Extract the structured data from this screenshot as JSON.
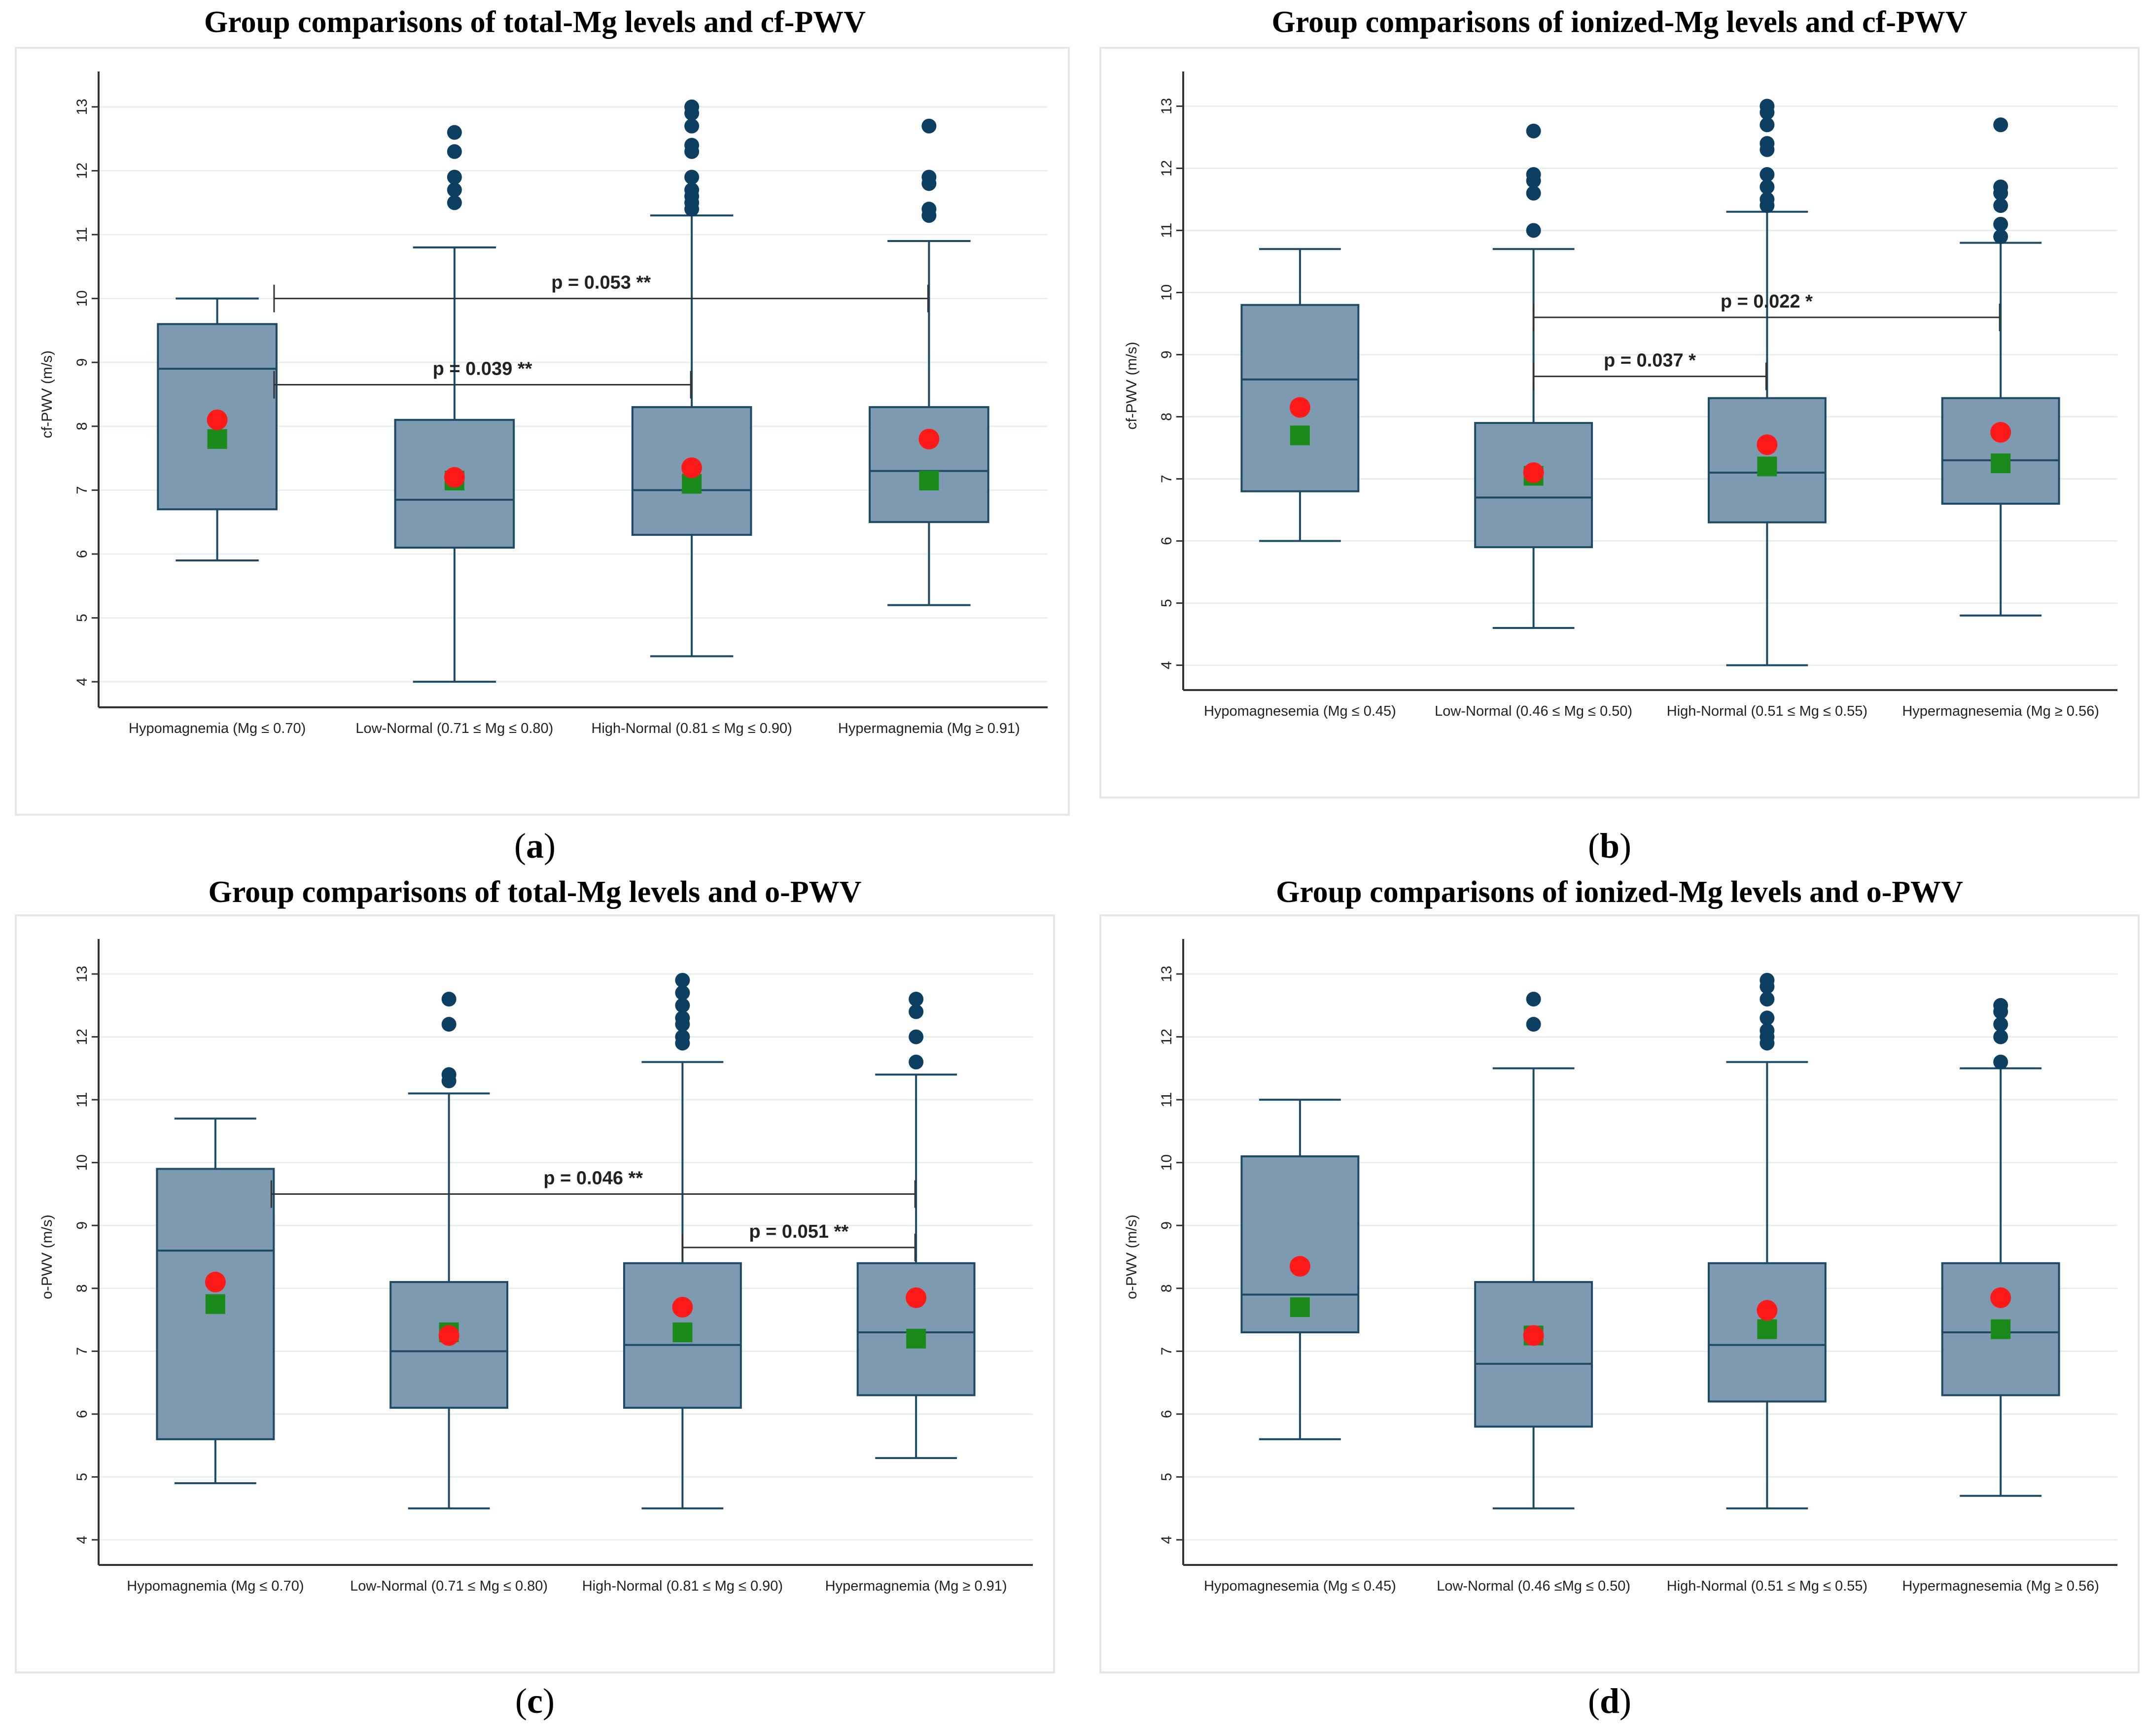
{
  "figure": {
    "panels": [
      {
        "id": "a",
        "title": "Group comparisons of total-Mg levels and cf-PWV",
        "caption_letter": "a",
        "chart_data": {
          "type": "boxplot",
          "ylabel": "cf-PWV (m/s)",
          "ylim": [
            3.6,
            13.4
          ],
          "yticks": [
            4,
            5,
            6,
            7,
            8,
            9,
            10,
            11,
            12,
            13
          ],
          "categories": [
            "Hypomagnemia (Mg ≤ 0.70)",
            "Low-Normal (0.71 ≤ Mg ≤ 0.80)",
            "High-Normal (0.81 ≤ Mg ≤ 0.90)",
            "Hypermagnemia (Mg ≥ 0.91)"
          ],
          "groups": [
            {
              "whisker_low": 5.9,
              "q1": 6.7,
              "median": 8.9,
              "q3": 9.6,
              "whisker_high": 10.0,
              "mean_red": 8.1,
              "mean_green": 7.8,
              "outliers": []
            },
            {
              "whisker_low": 4.0,
              "q1": 6.1,
              "median": 6.85,
              "q3": 8.1,
              "whisker_high": 10.8,
              "mean_red": 7.2,
              "mean_green": 7.15,
              "outliers": [
                11.5,
                11.7,
                11.9,
                12.3,
                12.6
              ]
            },
            {
              "whisker_low": 4.4,
              "q1": 6.3,
              "median": 7.0,
              "q3": 8.3,
              "whisker_high": 11.3,
              "mean_red": 7.35,
              "mean_green": 7.1,
              "outliers": [
                11.4,
                11.5,
                11.6,
                11.7,
                11.9,
                12.3,
                12.4,
                12.7,
                12.9,
                13.0
              ]
            },
            {
              "whisker_low": 5.2,
              "q1": 6.5,
              "median": 7.3,
              "q3": 8.3,
              "whisker_high": 10.9,
              "mean_red": 7.8,
              "mean_green": 7.15,
              "outliers": [
                11.3,
                11.4,
                11.8,
                11.9,
                12.7
              ]
            }
          ],
          "annotations": [
            {
              "text": "p = 0.053 **",
              "from": 0,
              "to": 3,
              "y": 10.0
            },
            {
              "text": "p = 0.039 **",
              "from": 0,
              "to": 2,
              "y": 8.65
            }
          ]
        }
      },
      {
        "id": "b",
        "title": "Group comparisons of ionized-Mg levels and cf-PWV",
        "caption_letter": "b",
        "chart_data": {
          "type": "boxplot",
          "ylabel": "cf-PWV (m/s)",
          "ylim": [
            3.6,
            13.4
          ],
          "yticks": [
            4,
            5,
            6,
            7,
            8,
            9,
            10,
            11,
            12,
            13
          ],
          "categories": [
            "Hypomagnesemia (Mg ≤ 0.45)",
            "Low-Normal (0.46 ≤ Mg ≤ 0.50)",
            "High-Normal (0.51 ≤ Mg ≤ 0.55)",
            "Hypermagnesemia (Mg ≥ 0.56)"
          ],
          "groups": [
            {
              "whisker_low": 6.0,
              "q1": 6.8,
              "median": 8.6,
              "q3": 9.8,
              "whisker_high": 10.7,
              "mean_red": 8.15,
              "mean_green": 7.7,
              "outliers": []
            },
            {
              "whisker_low": 4.6,
              "q1": 5.9,
              "median": 6.7,
              "q3": 7.9,
              "whisker_high": 10.7,
              "mean_red": 7.1,
              "mean_green": 7.05,
              "outliers": [
                11.0,
                11.6,
                11.8,
                11.9,
                12.6
              ]
            },
            {
              "whisker_low": 4.0,
              "q1": 6.3,
              "median": 7.1,
              "q3": 8.3,
              "whisker_high": 11.3,
              "mean_red": 7.55,
              "mean_green": 7.2,
              "outliers": [
                11.4,
                11.5,
                11.7,
                11.9,
                12.3,
                12.4,
                12.7,
                12.9,
                13.0
              ]
            },
            {
              "whisker_low": 4.8,
              "q1": 6.6,
              "median": 7.3,
              "q3": 8.3,
              "whisker_high": 10.8,
              "mean_red": 7.75,
              "mean_green": 7.25,
              "outliers": [
                10.9,
                11.1,
                11.4,
                11.6,
                11.7,
                12.7
              ]
            }
          ],
          "annotations": [
            {
              "text": "p = 0.022 *",
              "from": 1,
              "to": 3,
              "y": 9.6
            },
            {
              "text": "p = 0.037 *",
              "from": 1,
              "to": 2,
              "y": 8.65
            }
          ]
        }
      },
      {
        "id": "c",
        "title": "Group comparisons of total-Mg levels and o-PWV",
        "caption_letter": "c",
        "chart_data": {
          "type": "boxplot",
          "ylabel": "o-PWV (m/s)",
          "ylim": [
            3.6,
            13.4
          ],
          "yticks": [
            4,
            5,
            6,
            7,
            8,
            9,
            10,
            11,
            12,
            13
          ],
          "categories": [
            "Hypomagnemia (Mg ≤ 0.70)",
            "Low-Normal (0.71 ≤ Mg ≤ 0.80)",
            "High-Normal (0.81 ≤ Mg ≤ 0.90)",
            "Hypermagnemia (Mg ≥ 0.91)"
          ],
          "groups": [
            {
              "whisker_low": 4.9,
              "q1": 5.6,
              "median": 8.6,
              "q3": 9.9,
              "whisker_high": 10.7,
              "mean_red": 8.1,
              "mean_green": 7.75,
              "outliers": []
            },
            {
              "whisker_low": 4.5,
              "q1": 6.1,
              "median": 7.0,
              "q3": 8.1,
              "whisker_high": 11.1,
              "mean_red": 7.25,
              "mean_green": 7.3,
              "outliers": [
                11.3,
                11.4,
                12.2,
                12.6
              ]
            },
            {
              "whisker_low": 4.5,
              "q1": 6.1,
              "median": 7.1,
              "q3": 8.4,
              "whisker_high": 11.6,
              "mean_red": 7.7,
              "mean_green": 7.3,
              "outliers": [
                11.9,
                12.0,
                12.2,
                12.3,
                12.5,
                12.7,
                12.9
              ]
            },
            {
              "whisker_low": 5.3,
              "q1": 6.3,
              "median": 7.3,
              "q3": 8.4,
              "whisker_high": 11.4,
              "mean_red": 7.85,
              "mean_green": 7.2,
              "outliers": [
                11.6,
                12.0,
                12.4,
                12.6
              ]
            }
          ],
          "annotations": [
            {
              "text": "p = 0.046 **",
              "from": 0,
              "to": 3,
              "y": 9.5
            },
            {
              "text": "p = 0.051 **",
              "from": 2,
              "to": 3,
              "y": 8.65
            }
          ]
        }
      },
      {
        "id": "d",
        "title": "Group comparisons of ionized-Mg levels and o-PWV",
        "caption_letter": "d",
        "chart_data": {
          "type": "boxplot",
          "ylabel": "o-PWV (m/s)",
          "ylim": [
            3.6,
            13.4
          ],
          "yticks": [
            4,
            5,
            6,
            7,
            8,
            9,
            10,
            11,
            12,
            13
          ],
          "categories": [
            "Hypomagnesemia (Mg ≤ 0.45)",
            "Low-Normal (0.46 ≤Mg ≤ 0.50)",
            "High-Normal (0.51 ≤ Mg ≤ 0.55)",
            "Hypermagnesemia (Mg ≥ 0.56)"
          ],
          "groups": [
            {
              "whisker_low": 5.6,
              "q1": 7.3,
              "median": 7.9,
              "q3": 10.1,
              "whisker_high": 11.0,
              "mean_red": 8.35,
              "mean_green": 7.7,
              "outliers": []
            },
            {
              "whisker_low": 4.5,
              "q1": 5.8,
              "median": 6.8,
              "q3": 8.1,
              "whisker_high": 11.5,
              "mean_red": 7.25,
              "mean_green": 7.25,
              "outliers": [
                12.2,
                12.6
              ]
            },
            {
              "whisker_low": 4.5,
              "q1": 6.2,
              "median": 7.1,
              "q3": 8.4,
              "whisker_high": 11.6,
              "mean_red": 7.65,
              "mean_green": 7.35,
              "outliers": [
                11.9,
                12.0,
                12.1,
                12.3,
                12.6,
                12.8,
                12.9
              ]
            },
            {
              "whisker_low": 4.7,
              "q1": 6.3,
              "median": 7.3,
              "q3": 8.4,
              "whisker_high": 11.5,
              "mean_red": 7.85,
              "mean_green": 7.35,
              "outliers": [
                11.6,
                12.0,
                12.2,
                12.4,
                12.5
              ]
            }
          ],
          "annotations": []
        }
      }
    ],
    "colors": {
      "box_fill": "#7d9ab0",
      "box_stroke": "#1d4a66",
      "outlier": "#0d3f63",
      "mean_red": "#ff1a1a",
      "mean_green": "#1a8a1a",
      "grid": "#e8edf0",
      "axis": "#333333"
    }
  }
}
